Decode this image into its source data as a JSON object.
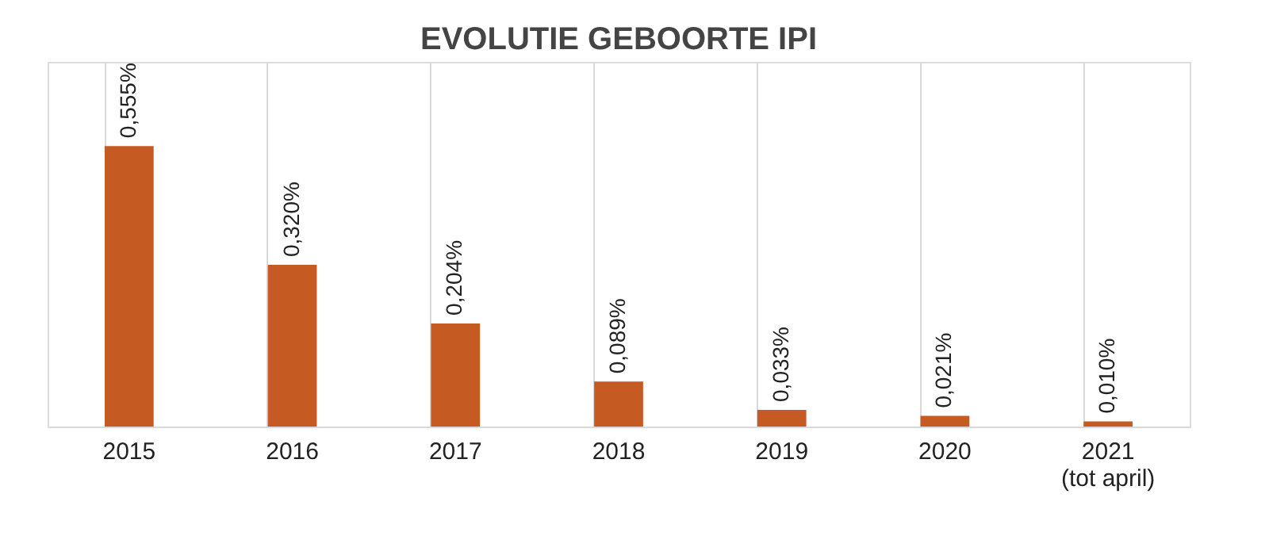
{
  "chart_data": {
    "type": "bar",
    "title": "EVOLUTIE GEBOORTE IPI",
    "categories": [
      "2015",
      "2016",
      "2017",
      "2018",
      "2019",
      "2020",
      "2021\n(tot april)"
    ],
    "values": [
      0.555,
      0.32,
      0.204,
      0.089,
      0.033,
      0.021,
      0.01
    ],
    "value_labels": [
      "0,555%",
      "0,320%",
      "0,204%",
      "0,089%",
      "0,033%",
      "0,021%",
      "0,010%"
    ],
    "color": "#c55a23",
    "grid": "x"
  }
}
